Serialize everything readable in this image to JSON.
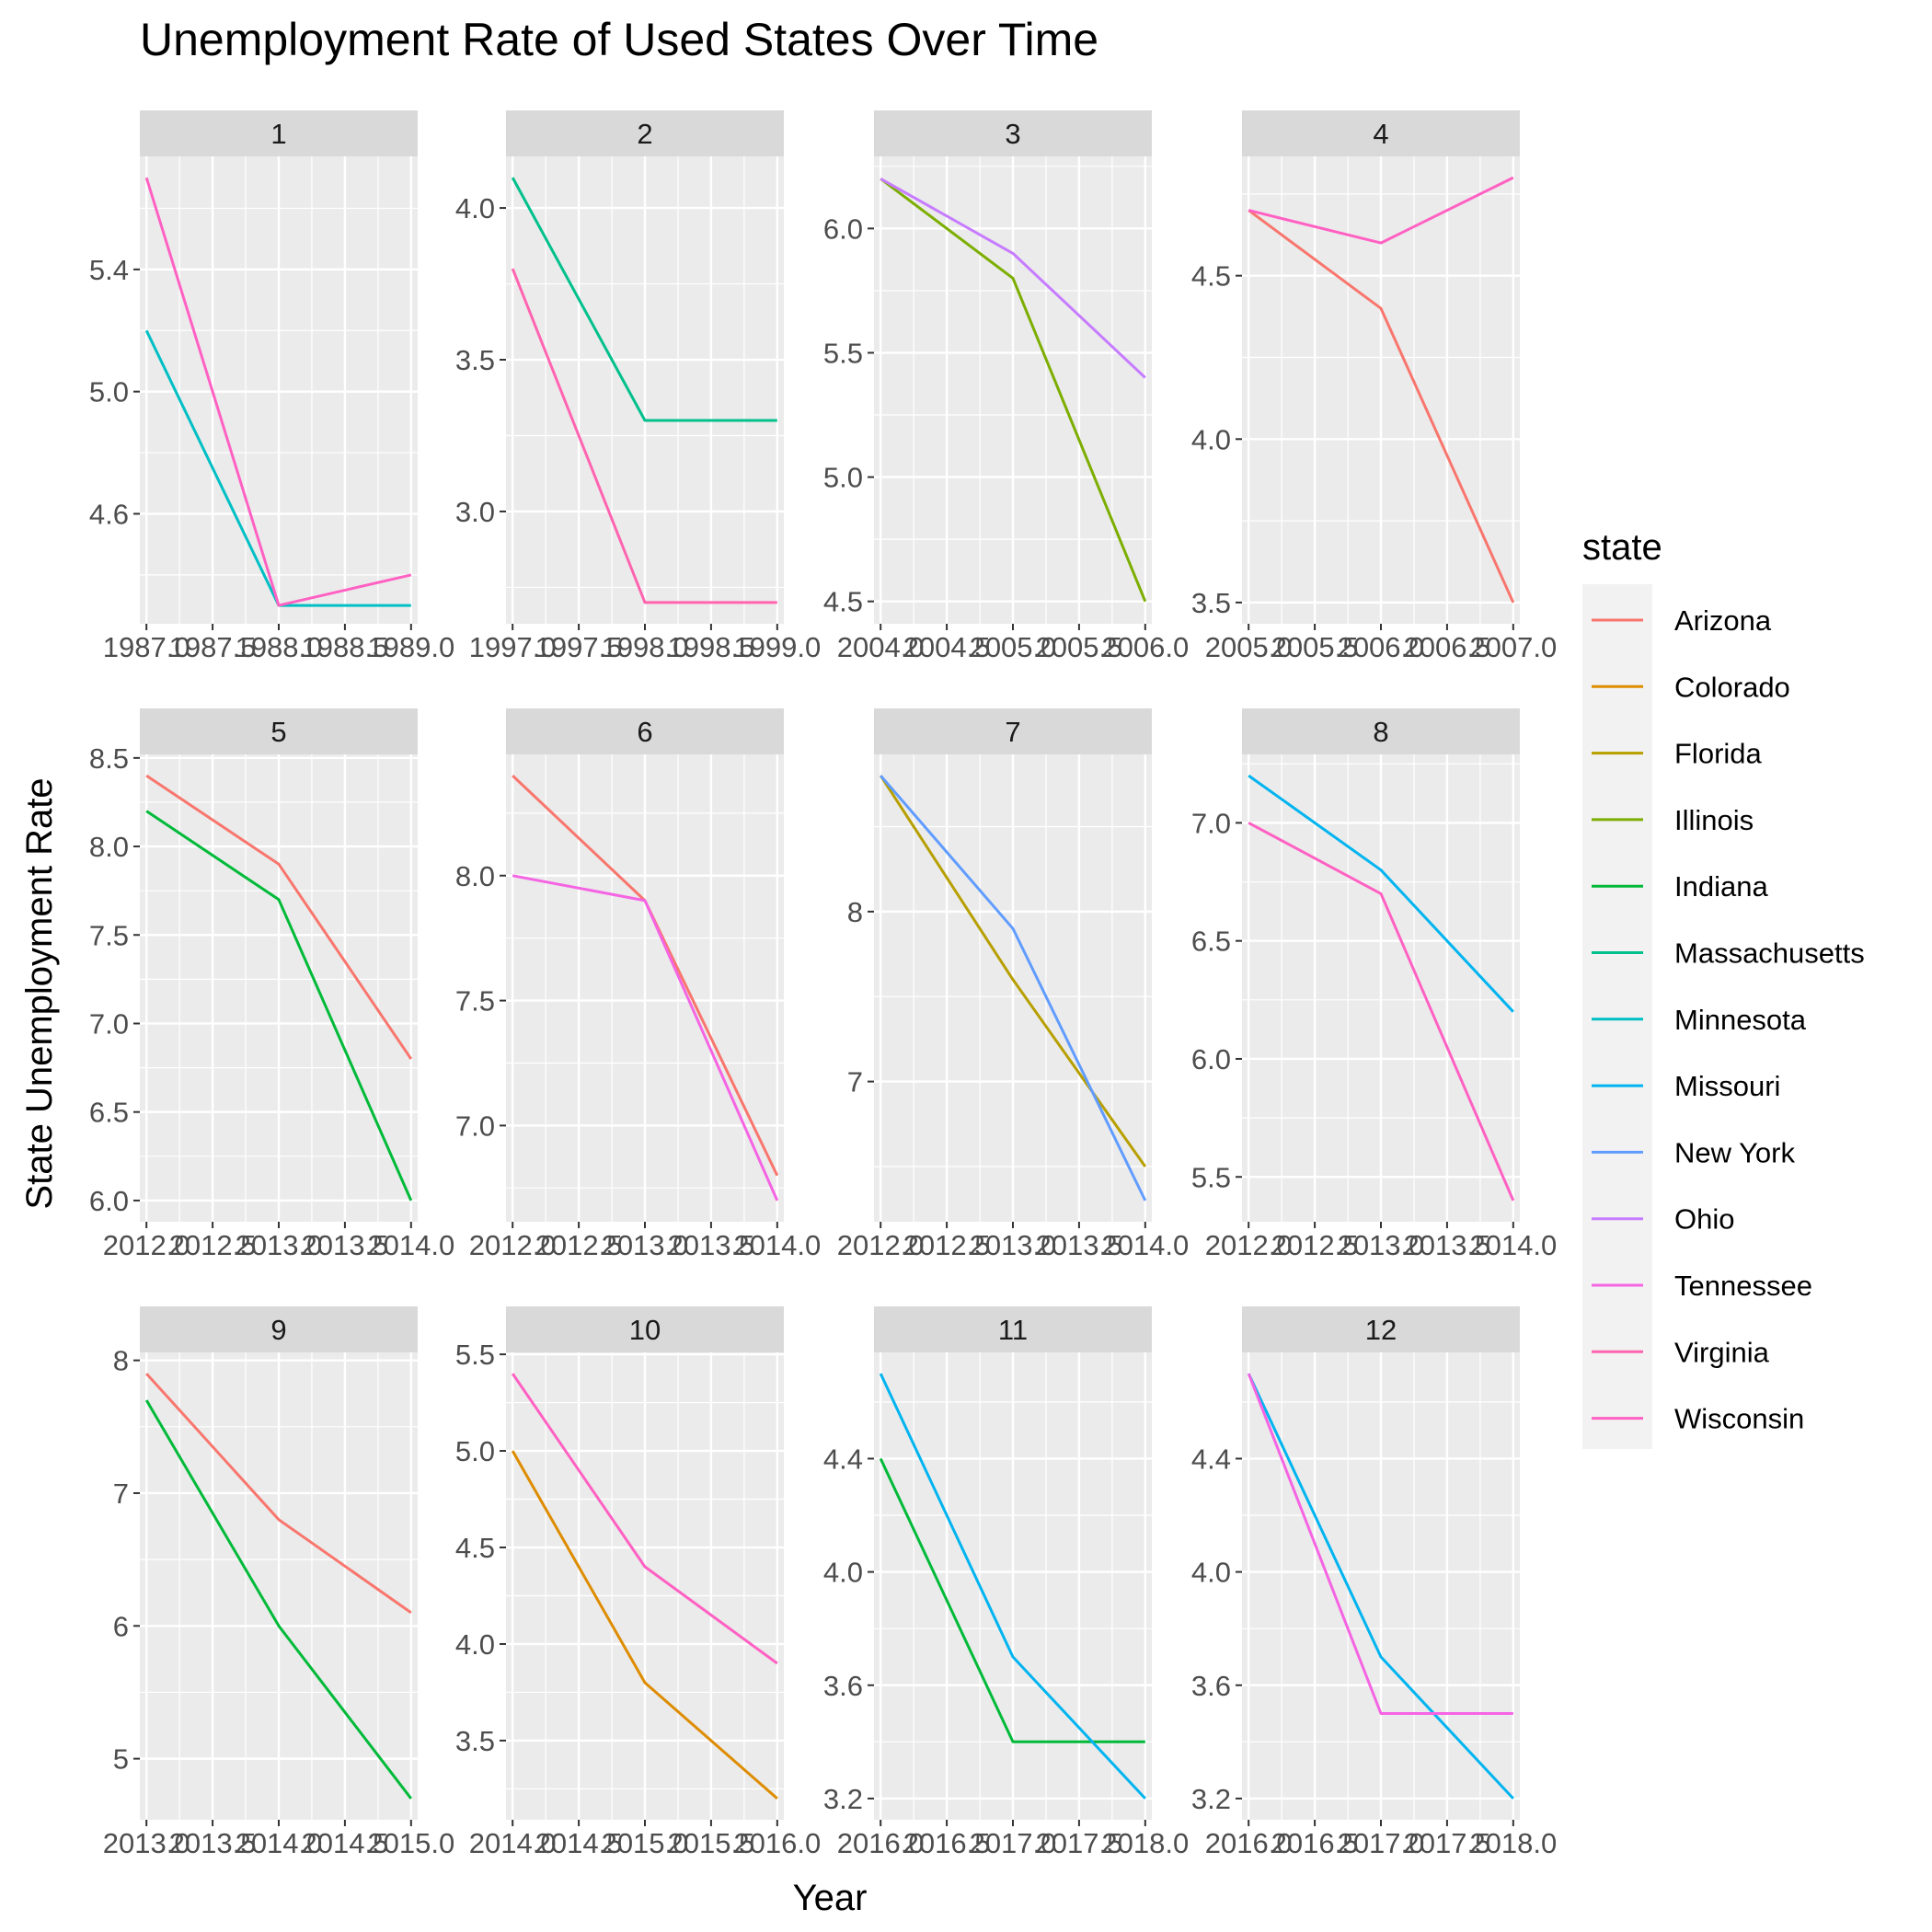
{
  "chart_data": {
    "type": "line",
    "title": "Unemployment Rate of Used States Over Time",
    "xlabel": "Year",
    "ylabel": "State Unemployment Rate",
    "grid": true,
    "legend": {
      "title": "state",
      "placement": "right",
      "entries": [
        {
          "name": "Arizona",
          "color": "#F8766D"
        },
        {
          "name": "Colorado",
          "color": "#DE8C00"
        },
        {
          "name": "Florida",
          "color": "#B79F00"
        },
        {
          "name": "Illinois",
          "color": "#7CAE00"
        },
        {
          "name": "Indiana",
          "color": "#00BA38"
        },
        {
          "name": "Massachusetts",
          "color": "#00C08B"
        },
        {
          "name": "Minnesota",
          "color": "#00BFC4"
        },
        {
          "name": "Missouri",
          "color": "#00B4F0"
        },
        {
          "name": "New York",
          "color": "#619CFF"
        },
        {
          "name": "Ohio",
          "color": "#C77CFF"
        },
        {
          "name": "Tennessee",
          "color": "#F564E3"
        },
        {
          "name": "Virginia",
          "color": "#FF64B0"
        },
        {
          "name": "Wisconsin",
          "color": "#FF61C3"
        }
      ]
    },
    "panels": [
      {
        "label": "1",
        "xlim": [
          1986.95,
          1989.05
        ],
        "ylim": [
          4.24,
          5.77
        ],
        "x_ticks": [
          "1987.0",
          "1987.5",
          "1988.0",
          "1988.5",
          "1989.0"
        ],
        "x_tick_values": [
          1987.0,
          1987.5,
          1988.0,
          1988.5,
          1989.0
        ],
        "y_ticks": [
          4.6,
          5.0,
          5.4
        ],
        "y_tick_labels": [
          "4.6",
          "5.0",
          "5.4"
        ],
        "series": [
          {
            "name": "Minnesota",
            "x": [
              1987,
              1988,
              1989
            ],
            "values": [
              5.2,
              4.3,
              4.3
            ]
          },
          {
            "name": "Wisconsin",
            "x": [
              1987,
              1988,
              1989
            ],
            "values": [
              5.7,
              4.3,
              4.4
            ]
          }
        ]
      },
      {
        "label": "2",
        "xlim": [
          1996.95,
          1999.05
        ],
        "ylim": [
          2.63,
          4.17
        ],
        "x_ticks": [
          "1997.0",
          "1997.5",
          "1998.0",
          "1998.5",
          "1999.0"
        ],
        "x_tick_values": [
          1997.0,
          1997.5,
          1998.0,
          1998.5,
          1999.0
        ],
        "y_ticks": [
          3.0,
          3.5,
          4.0
        ],
        "y_tick_labels": [
          "3.0",
          "3.5",
          "4.0"
        ],
        "series": [
          {
            "name": "Massachusetts",
            "x": [
              1997,
              1998,
              1999
            ],
            "values": [
              4.1,
              3.3,
              3.3
            ]
          },
          {
            "name": "Virginia",
            "x": [
              1997,
              1998,
              1999
            ],
            "values": [
              3.8,
              2.7,
              2.7
            ]
          }
        ]
      },
      {
        "label": "3",
        "xlim": [
          2003.95,
          2006.05
        ],
        "ylim": [
          4.41,
          6.29
        ],
        "x_ticks": [
          "2004.0",
          "2004.5",
          "2005.0",
          "2005.5",
          "2006.0"
        ],
        "x_tick_values": [
          2004.0,
          2004.5,
          2005.0,
          2005.5,
          2006.0
        ],
        "y_ticks": [
          4.5,
          5.0,
          5.5,
          6.0
        ],
        "y_tick_labels": [
          "4.5",
          "5.0",
          "5.5",
          "6.0"
        ],
        "series": [
          {
            "name": "Illinois",
            "x": [
              2004,
              2005,
              2006
            ],
            "values": [
              6.2,
              5.8,
              4.5
            ]
          },
          {
            "name": "Ohio",
            "x": [
              2004,
              2005,
              2006
            ],
            "values": [
              6.2,
              5.9,
              5.4
            ]
          }
        ]
      },
      {
        "label": "4",
        "xlim": [
          2004.95,
          2007.05
        ],
        "ylim": [
          3.435,
          4.865
        ],
        "x_ticks": [
          "2005.0",
          "2005.5",
          "2006.0",
          "2006.5",
          "2007.0"
        ],
        "x_tick_values": [
          2005.0,
          2005.5,
          2006.0,
          2006.5,
          2007.0
        ],
        "y_ticks": [
          3.5,
          4.0,
          4.5
        ],
        "y_tick_labels": [
          "3.5",
          "4.0",
          "4.5"
        ],
        "series": [
          {
            "name": "Arizona",
            "x": [
              2005,
              2006,
              2007
            ],
            "values": [
              4.7,
              4.4,
              3.5
            ]
          },
          {
            "name": "Wisconsin",
            "x": [
              2005,
              2006,
              2007
            ],
            "values": [
              4.7,
              4.6,
              4.8
            ]
          }
        ]
      },
      {
        "label": "5",
        "xlim": [
          2011.95,
          2014.05
        ],
        "ylim": [
          5.88,
          8.52
        ],
        "x_ticks": [
          "2012.0",
          "2012.5",
          "2013.0",
          "2013.5",
          "2014.0"
        ],
        "x_tick_values": [
          2012.0,
          2012.5,
          2013.0,
          2013.5,
          2014.0
        ],
        "y_ticks": [
          6.0,
          6.5,
          7.0,
          7.5,
          8.0,
          8.5
        ],
        "y_tick_labels": [
          "6.0",
          "6.5",
          "7.0",
          "7.5",
          "8.0",
          "8.5"
        ],
        "series": [
          {
            "name": "Arizona",
            "x": [
              2012,
              2013,
              2014
            ],
            "values": [
              8.4,
              7.9,
              6.8
            ]
          },
          {
            "name": "Indiana",
            "x": [
              2012,
              2013,
              2014
            ],
            "values": [
              8.2,
              7.7,
              6.0
            ]
          }
        ]
      },
      {
        "label": "6",
        "xlim": [
          2011.95,
          2014.05
        ],
        "ylim": [
          6.615,
          8.485
        ],
        "x_ticks": [
          "2012.0",
          "2012.5",
          "2013.0",
          "2013.5",
          "2014.0"
        ],
        "x_tick_values": [
          2012.0,
          2012.5,
          2013.0,
          2013.5,
          2014.0
        ],
        "y_ticks": [
          7.0,
          7.5,
          8.0
        ],
        "y_tick_labels": [
          "7.0",
          "7.5",
          "8.0"
        ],
        "series": [
          {
            "name": "Arizona",
            "x": [
              2012,
              2013,
              2014
            ],
            "values": [
              8.4,
              7.9,
              6.8
            ]
          },
          {
            "name": "Tennessee",
            "x": [
              2012,
              2013,
              2014
            ],
            "values": [
              8.0,
              7.9,
              6.7
            ]
          }
        ]
      },
      {
        "label": "7",
        "xlim": [
          2011.95,
          2014.05
        ],
        "ylim": [
          6.175,
          8.925
        ],
        "x_ticks": [
          "2012.0",
          "2012.5",
          "2013.0",
          "2013.5",
          "2014.0"
        ],
        "x_tick_values": [
          2012.0,
          2012.5,
          2013.0,
          2013.5,
          2014.0
        ],
        "y_ticks": [
          7,
          8
        ],
        "y_tick_labels": [
          "7",
          "8"
        ],
        "series": [
          {
            "name": "Florida",
            "x": [
              2012,
              2013,
              2014
            ],
            "values": [
              8.8,
              7.6,
              6.5
            ]
          },
          {
            "name": "New York",
            "x": [
              2012,
              2013,
              2014
            ],
            "values": [
              8.8,
              7.9,
              6.3
            ]
          }
        ]
      },
      {
        "label": "8",
        "xlim": [
          2011.95,
          2014.05
        ],
        "ylim": [
          5.31,
          7.29
        ],
        "x_ticks": [
          "2012.0",
          "2012.5",
          "2013.0",
          "2013.5",
          "2014.0"
        ],
        "x_tick_values": [
          2012.0,
          2012.5,
          2013.0,
          2013.5,
          2014.0
        ],
        "y_ticks": [
          5.5,
          6.0,
          6.5,
          7.0
        ],
        "y_tick_labels": [
          "5.5",
          "6.0",
          "6.5",
          "7.0"
        ],
        "series": [
          {
            "name": "Missouri",
            "x": [
              2012,
              2013,
              2014
            ],
            "values": [
              7.2,
              6.8,
              6.2
            ]
          },
          {
            "name": "Wisconsin",
            "x": [
              2012,
              2013,
              2014
            ],
            "values": [
              7.0,
              6.7,
              5.4
            ]
          }
        ]
      },
      {
        "label": "9",
        "xlim": [
          2012.95,
          2015.05
        ],
        "ylim": [
          4.54,
          8.06
        ],
        "x_ticks": [
          "2013.0",
          "2013.5",
          "2014.0",
          "2014.5",
          "2015.0"
        ],
        "x_tick_values": [
          2013.0,
          2013.5,
          2014.0,
          2014.5,
          2015.0
        ],
        "y_ticks": [
          5,
          6,
          7,
          8
        ],
        "y_tick_labels": [
          "5",
          "6",
          "7",
          "8"
        ],
        "series": [
          {
            "name": "Arizona",
            "x": [
              2013,
              2014,
              2015
            ],
            "values": [
              7.9,
              6.8,
              6.1
            ]
          },
          {
            "name": "Indiana",
            "x": [
              2013,
              2014,
              2015
            ],
            "values": [
              7.7,
              6.0,
              4.7
            ]
          }
        ]
      },
      {
        "label": "10",
        "xlim": [
          2013.95,
          2016.05
        ],
        "ylim": [
          3.09,
          5.51
        ],
        "x_ticks": [
          "2014.0",
          "2014.5",
          "2015.0",
          "2015.5",
          "2016.0"
        ],
        "x_tick_values": [
          2014.0,
          2014.5,
          2015.0,
          2015.5,
          2016.0
        ],
        "y_ticks": [
          3.5,
          4.0,
          4.5,
          5.0,
          5.5
        ],
        "y_tick_labels": [
          "3.5",
          "4.0",
          "4.5",
          "5.0",
          "5.5"
        ],
        "series": [
          {
            "name": "Colorado",
            "x": [
              2014,
              2015,
              2016
            ],
            "values": [
              5.0,
              3.8,
              3.2
            ]
          },
          {
            "name": "Wisconsin",
            "x": [
              2014,
              2015,
              2016
            ],
            "values": [
              5.4,
              4.4,
              3.9
            ]
          }
        ]
      },
      {
        "label": "11",
        "xlim": [
          2015.95,
          2018.05
        ],
        "ylim": [
          3.125,
          4.775
        ],
        "x_ticks": [
          "2016.0",
          "2016.5",
          "2017.0",
          "2017.5",
          "2018.0"
        ],
        "x_tick_values": [
          2016.0,
          2016.5,
          2017.0,
          2017.5,
          2018.0
        ],
        "y_ticks": [
          3.2,
          3.6,
          4.0,
          4.4
        ],
        "y_tick_labels": [
          "3.2",
          "3.6",
          "4.0",
          "4.4"
        ],
        "series": [
          {
            "name": "Indiana",
            "x": [
              2016,
              2017,
              2018
            ],
            "values": [
              4.4,
              3.4,
              3.4
            ]
          },
          {
            "name": "Missouri",
            "x": [
              2016,
              2017,
              2018
            ],
            "values": [
              4.7,
              3.7,
              3.2
            ]
          }
        ]
      },
      {
        "label": "12",
        "xlim": [
          2015.95,
          2018.05
        ],
        "ylim": [
          3.125,
          4.775
        ],
        "x_ticks": [
          "2016.0",
          "2016.5",
          "2017.0",
          "2017.5",
          "2018.0"
        ],
        "x_tick_values": [
          2016.0,
          2016.5,
          2017.0,
          2017.5,
          2018.0
        ],
        "y_ticks": [
          3.2,
          3.6,
          4.0,
          4.4
        ],
        "y_tick_labels": [
          "3.2",
          "3.6",
          "4.0",
          "4.4"
        ],
        "series": [
          {
            "name": "Missouri",
            "x": [
              2016,
              2017,
              2018
            ],
            "values": [
              4.7,
              3.7,
              3.2
            ]
          },
          {
            "name": "Tennessee",
            "x": [
              2016,
              2017,
              2018
            ],
            "values": [
              4.7,
              3.5,
              3.5
            ]
          }
        ]
      }
    ]
  }
}
